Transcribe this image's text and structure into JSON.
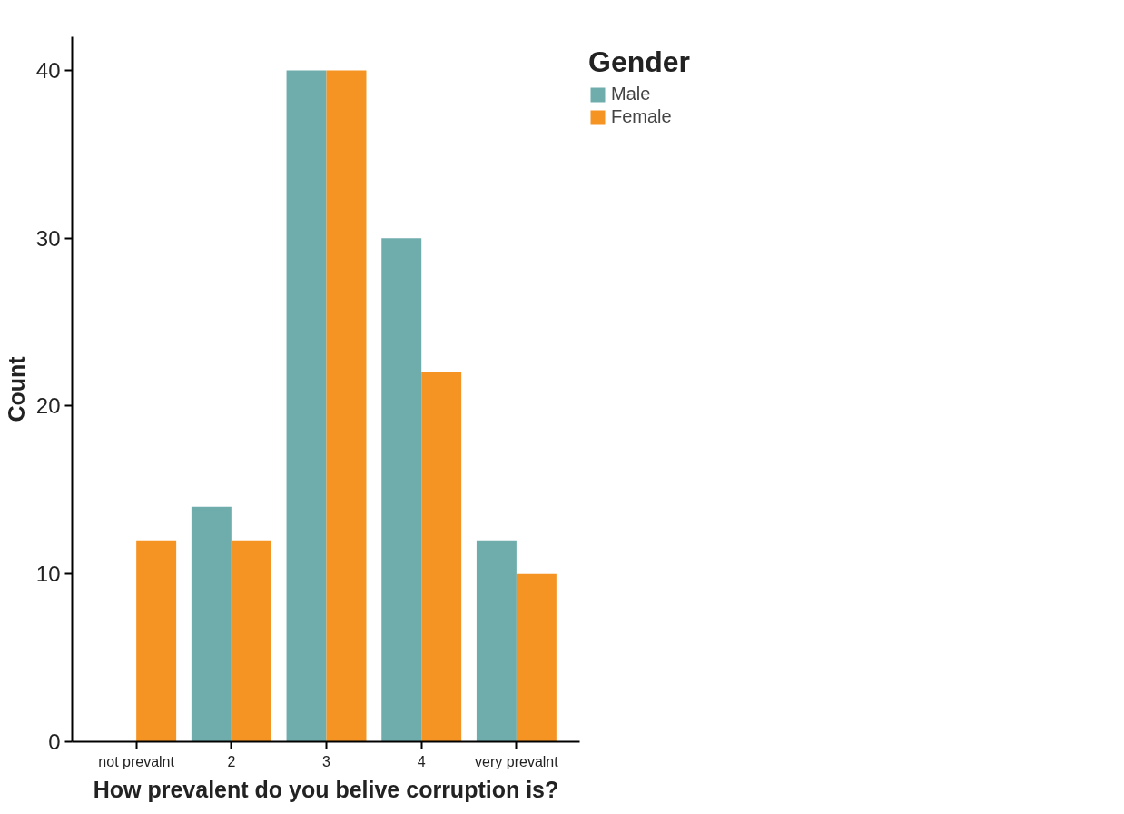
{
  "chart_data": {
    "type": "bar",
    "xlabel": "How prevalent do you belive corruption is?",
    "ylabel": "Count",
    "legend_title": "Gender",
    "categories": [
      "not prevalnt",
      "2",
      "3",
      "4",
      "very prevalnt"
    ],
    "series": [
      {
        "name": "Male",
        "color": "#6fadad",
        "values": [
          null,
          14,
          40,
          30,
          12
        ]
      },
      {
        "name": "Female",
        "color": "#f59323",
        "values": [
          12,
          12,
          40,
          22,
          10
        ]
      }
    ],
    "ylim": [
      0,
      42
    ],
    "yticks": [
      0,
      10,
      20,
      30,
      40
    ],
    "grid": false,
    "legend": "top right"
  }
}
